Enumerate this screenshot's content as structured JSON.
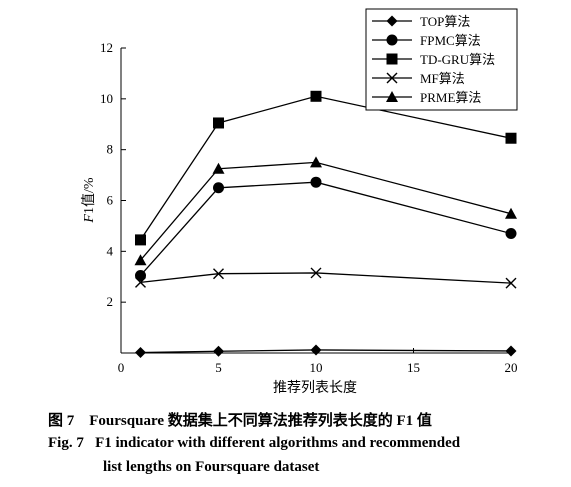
{
  "chart_data": {
    "type": "line",
    "x": [
      1,
      5,
      10,
      20
    ],
    "xlabel": "推荐列表长度",
    "ylabel": "F1值/%",
    "xlim": [
      0,
      20
    ],
    "ylim": [
      0,
      12
    ],
    "x_ticks": [
      "0",
      "5",
      "10",
      "15",
      "20"
    ],
    "y_ticks": [
      "2",
      "4",
      "6",
      "8",
      "10",
      "12"
    ],
    "grid": false,
    "legend_position": "top-right",
    "series": [
      {
        "name": "TOP算法",
        "marker": "diamond",
        "values": [
          0.02,
          0.07,
          0.12,
          0.08
        ]
      },
      {
        "name": "FPMC算法",
        "marker": "circle",
        "values": [
          3.05,
          6.5,
          6.72,
          4.7
        ]
      },
      {
        "name": "TD-GRU算法",
        "marker": "square",
        "values": [
          4.45,
          9.05,
          10.1,
          8.45
        ]
      },
      {
        "name": "MF算法",
        "marker": "x",
        "values": [
          2.78,
          3.12,
          3.15,
          2.75
        ]
      },
      {
        "name": "PRME算法",
        "marker": "triangle",
        "values": [
          3.65,
          7.25,
          7.5,
          5.48
        ]
      }
    ]
  },
  "caption": {
    "cn_label": "图 7",
    "cn_text": "Foursquare 数据集上不同算法推荐列表长度的 F1 值",
    "en_label": "Fig. 7",
    "en_text_line1": "F1 indicator with different algorithms and recommended",
    "en_text_line2": "list lengths on Foursquare dataset"
  }
}
